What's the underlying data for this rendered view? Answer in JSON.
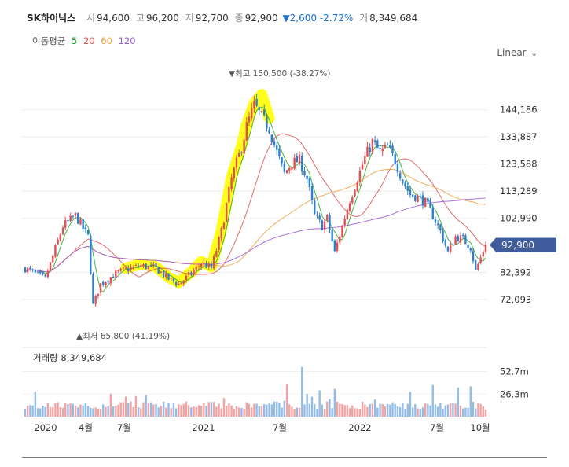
{
  "header": {
    "name": "SK하이닉스",
    "open_label": "시",
    "open": "94,600",
    "high_label": "고",
    "high": "96,200",
    "low_label": "저",
    "low": "92,700",
    "close_label": "종",
    "close": "92,900",
    "change": "▼2,600 -2.72%",
    "volume_label": "거",
    "volume": "8,349,684"
  },
  "moving_average": {
    "label": "이동평균",
    "periods": [
      {
        "value": "5",
        "color": "#26a626"
      },
      {
        "value": "20",
        "color": "#e05050"
      },
      {
        "value": "60",
        "color": "#f0a040"
      },
      {
        "value": "120",
        "color": "#9b59d0"
      }
    ]
  },
  "scale_mode": "Linear",
  "chart_data": {
    "type": "candlestick",
    "y_ticks": [
      "144,186",
      "133,887",
      "123,588",
      "113,289",
      "102,990",
      "82,392",
      "72,093"
    ],
    "ylim": [
      62000,
      156000
    ],
    "x_ticks": [
      "2020",
      "4월",
      "7월",
      "2021",
      "7월",
      "2022",
      "7월",
      "10월"
    ],
    "current_price": "92,900",
    "max_annotation": "최고 150,500 (-38.27%)",
    "min_annotation": "최저 65,800 (41.19%)",
    "highlight_color": "#ffff00",
    "up_color": "#e05050",
    "down_color": "#2c7fd0",
    "price_anchors": [
      [
        0,
        84000
      ],
      [
        8,
        80000
      ],
      [
        15,
        100000
      ],
      [
        20,
        104000
      ],
      [
        25,
        96000
      ],
      [
        27,
        70000
      ],
      [
        30,
        78000
      ],
      [
        36,
        82000
      ],
      [
        40,
        83500
      ],
      [
        46,
        85000
      ],
      [
        52,
        84000
      ],
      [
        57,
        80000
      ],
      [
        61,
        78000
      ],
      [
        66,
        82000
      ],
      [
        70,
        86000
      ],
      [
        74,
        84000
      ],
      [
        78,
        98000
      ],
      [
        82,
        118000
      ],
      [
        86,
        130000
      ],
      [
        88,
        138000
      ],
      [
        91,
        146000
      ],
      [
        93,
        143000
      ],
      [
        97,
        137000
      ],
      [
        100,
        128000
      ],
      [
        103,
        120000
      ],
      [
        106,
        124000
      ],
      [
        109,
        125000
      ],
      [
        112,
        118000
      ],
      [
        115,
        104000
      ],
      [
        118,
        100000
      ],
      [
        120,
        103000
      ],
      [
        123,
        90000
      ],
      [
        126,
        100000
      ],
      [
        129,
        110000
      ],
      [
        132,
        118000
      ],
      [
        135,
        126000
      ],
      [
        138,
        132000
      ],
      [
        141,
        128000
      ],
      [
        144,
        130000
      ],
      [
        147,
        125000
      ],
      [
        150,
        117000
      ],
      [
        153,
        112000
      ],
      [
        156,
        111000
      ],
      [
        159,
        109000
      ],
      [
        162,
        104000
      ],
      [
        165,
        98000
      ],
      [
        168,
        90000
      ],
      [
        171,
        96000
      ],
      [
        174,
        95000
      ],
      [
        177,
        92000
      ],
      [
        179,
        83000
      ],
      [
        181,
        88000
      ],
      [
        183,
        92900
      ]
    ],
    "volume_label": "거래량",
    "volume_value": "8,349,684",
    "volume_ticks": [
      "52.7m",
      "26.3m"
    ],
    "volume_max": 66000000
  }
}
